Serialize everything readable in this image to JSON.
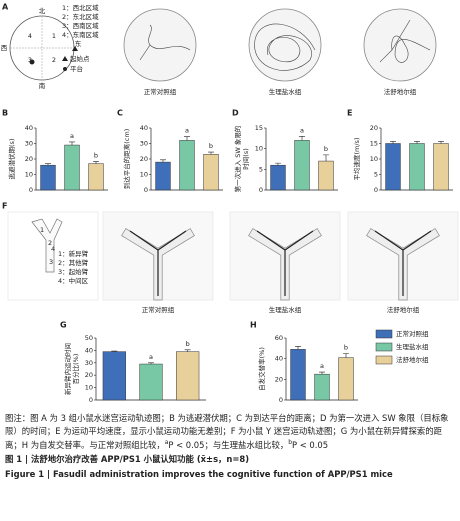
{
  "panel_labels": [
    "A",
    "B",
    "C",
    "D",
    "E",
    "F",
    "G",
    "H"
  ],
  "panel_a": {
    "directions": [
      "北",
      "西",
      "南",
      "东"
    ],
    "quadrant_numbers": [
      "4",
      "1",
      "3",
      "2"
    ],
    "quadrants": [
      "1：西北区域",
      "2：东北区域",
      "3：西南区域",
      "4：东南区域"
    ],
    "start": "起始点",
    "platform": "平台",
    "group_labels": [
      "正常对照组",
      "生理盐水组",
      "法舒地尔组"
    ]
  },
  "panel_f": {
    "arm_numbers": [
      "1",
      "2",
      "3",
      "4"
    ],
    "arms": [
      "1：新异臂",
      "2：其他臂",
      "3：起始臂",
      "4：中间区"
    ],
    "group_labels": [
      "正常对照组",
      "生理盐水组",
      "法舒地尔组"
    ]
  },
  "legend": {
    "names": [
      "正常对照组",
      "生理盐水组",
      "法舒地尔组"
    ],
    "colors": [
      "#3f6fb8",
      "#78c8a6",
      "#e8d09a"
    ]
  },
  "chart_data": [
    {
      "type": "bar",
      "ylabel": [
        "逃避潜伏期(s)"
      ],
      "values": [
        16,
        29,
        17
      ],
      "errors": [
        1,
        2,
        1.5
      ],
      "ylim": [
        0,
        40
      ],
      "yticks": [
        0,
        10,
        20,
        30,
        40
      ],
      "annotations": [
        {
          "bar": 1,
          "text": "a"
        },
        {
          "bar": 2,
          "text": "b"
        }
      ]
    },
    {
      "type": "bar",
      "ylabel": [
        "到达平台的距离(cm)"
      ],
      "values": [
        18,
        32,
        23
      ],
      "errors": [
        1.5,
        2.5,
        1.5
      ],
      "ylim": [
        0,
        40
      ],
      "yticks": [
        0,
        10,
        20,
        30,
        40
      ],
      "annotations": [
        {
          "bar": 1,
          "text": "a"
        },
        {
          "bar": 2,
          "text": "b"
        }
      ]
    },
    {
      "type": "bar",
      "ylabel": [
        "第一次进入 SW 象限的",
        "时间(s)"
      ],
      "values": [
        6,
        12,
        7
      ],
      "errors": [
        0.5,
        1,
        1.5
      ],
      "ylim": [
        0,
        15
      ],
      "yticks": [
        0,
        5,
        10,
        15
      ],
      "annotations": [
        {
          "bar": 1,
          "text": "a"
        },
        {
          "bar": 2,
          "text": "b"
        }
      ]
    },
    {
      "type": "bar",
      "ylabel": [
        "平均速度(m/s)"
      ],
      "values": [
        15,
        15,
        15
      ],
      "errors": [
        0.7,
        0.7,
        0.7
      ],
      "ylim": [
        0,
        20
      ],
      "yticks": [
        0,
        5,
        10,
        15,
        20
      ],
      "annotations": []
    },
    {
      "type": "bar",
      "ylabel": [
        "新异臂内运动时间",
        "百分比(%)"
      ],
      "values": [
        39,
        29,
        39
      ],
      "errors": [
        0.5,
        1,
        1.5
      ],
      "ylim": [
        0,
        50
      ],
      "yticks": [
        0,
        10,
        20,
        30,
        40,
        50
      ],
      "annotations": [
        {
          "bar": 1,
          "text": "a"
        },
        {
          "bar": 2,
          "text": "b"
        }
      ]
    },
    {
      "type": "bar",
      "ylabel": [
        "自发交替率(%)"
      ],
      "values": [
        49,
        25,
        41
      ],
      "errors": [
        3,
        2,
        4
      ],
      "ylim": [
        0,
        60
      ],
      "yticks": [
        0,
        20,
        40,
        60
      ],
      "annotations": [
        {
          "bar": 1,
          "text": "a"
        },
        {
          "bar": 2,
          "text": "b"
        }
      ]
    }
  ],
  "caption": {
    "note": [
      "图注：图 A 为 3 组小鼠水迷宫运动轨迹图；B 为逃避潜伏期；C 为到达平台的距离；D 为第一次进入 SW 象限（目标象限）的时间；E 为运动平均速度，显示小鼠运动功能无差别；F 为小鼠 Y 迷宫运动轨迹图；G 为小鼠在新异臂探索的距离；H 为自发交替率。与正常对照组比较，",
      "a",
      "P < 0.05；与生理盐水组比较，",
      "b",
      "P < 0.05"
    ],
    "title_cn": "图 1 | 法舒地尔治疗改善 APP/PS1 小鼠认知功能 (x̄±s，n=8)",
    "title_en": "Figure 1 | Fasudil administration improves the cognitive function of APP/PS1 mice"
  }
}
